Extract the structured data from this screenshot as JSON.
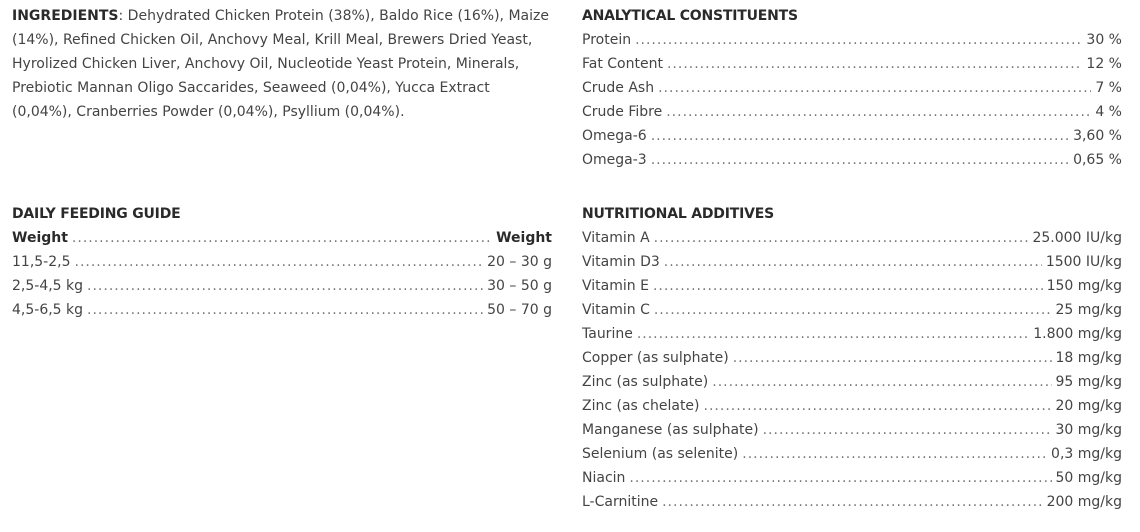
{
  "ingredients": {
    "label": "INGREDIENTS",
    "text": ": Dehydrated Chicken Protein (38%), Baldo Rice (16%), Maize (14%), Refined Chicken Oil, Anchovy Meal, Krill Meal, Brewers Dried Yeast, Hyrolized Chicken Liver, Anchovy Oil, Nucleotide Yeast Protein, Minerals, Prebiotic Mannan Oligo Saccarides, Seaweed (0,04%), Yucca Extract (0,04%), Cranberries Powder (0,04%), Psyllium (0,04%)."
  },
  "analytical": {
    "title": "ANALYTICAL CONSTITUENTS",
    "rows": [
      {
        "label": "Protein",
        "value": "30 %"
      },
      {
        "label": "Fat Content",
        "value": "12 %"
      },
      {
        "label": "Crude Ash",
        "value": "7 %"
      },
      {
        "label": "Crude Fibre",
        "value": "4 %"
      },
      {
        "label": "Omega-6",
        "value": "3,60 %"
      },
      {
        "label": "Omega-3",
        "value": "0,65 %"
      }
    ]
  },
  "feeding": {
    "title": "DAILY FEEDING GUIDE",
    "header": {
      "label": "Weight",
      "value": "Weight"
    },
    "rows": [
      {
        "label": "11,5-2,5",
        "value": "20 – 30 g"
      },
      {
        "label": "2,5-4,5 kg",
        "value": "30 – 50 g"
      },
      {
        "label": "4,5-6,5 kg",
        "value": "50 – 70 g"
      }
    ]
  },
  "additives": {
    "title": "NUTRITIONAL ADDITIVES",
    "rows": [
      {
        "label": "Vitamin A",
        "value": "25.000 IU/kg"
      },
      {
        "label": "Vitamin D3",
        "value": "1500 IU/kg"
      },
      {
        "label": "Vitamin E",
        "value": "150 mg/kg"
      },
      {
        "label": "Vitamin C",
        "value": "25 mg/kg"
      },
      {
        "label": "Taurine",
        "value": "1.800 mg/kg"
      },
      {
        "label": "Copper (as sulphate)",
        "value": "18 mg/kg"
      },
      {
        "label": "Zinc (as sulphate)",
        "value": "95 mg/kg"
      },
      {
        "label": "Zinc (as chelate)",
        "value": "20 mg/kg"
      },
      {
        "label": "Manganese (as sulphate)",
        "value": "30 mg/kg"
      },
      {
        "label": "Selenium (as selenite)",
        "value": "0,3 mg/kg"
      },
      {
        "label": "Niacin",
        "value": "50 mg/kg"
      },
      {
        "label": "L-Carnitine",
        "value": "200 mg/kg"
      }
    ]
  }
}
